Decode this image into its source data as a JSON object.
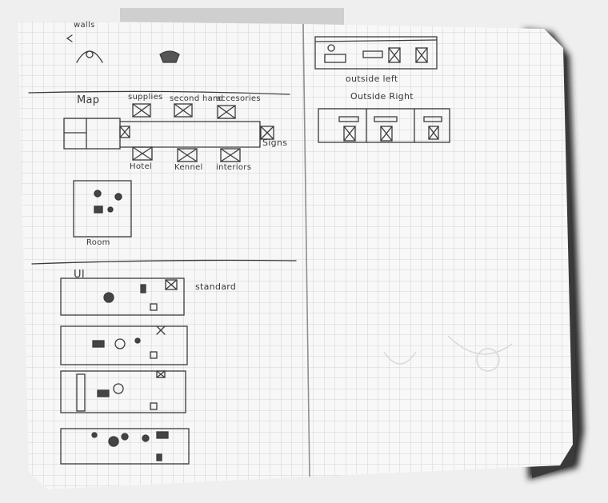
{
  "sketch": {
    "left_page": {
      "walls_label": "walls",
      "map_label": "Map",
      "top_rooms": [
        "supplies",
        "second hand",
        "accesories"
      ],
      "bottom_rooms": [
        "Hotel",
        "Kennel",
        "interiors"
      ],
      "signs_label": "Signs",
      "room_label": "Room",
      "ui_label": "UI",
      "standard_label": "standard"
    },
    "right_page": {
      "outside_left_label": "outside left",
      "outside_right_label": "Outside Right"
    }
  }
}
